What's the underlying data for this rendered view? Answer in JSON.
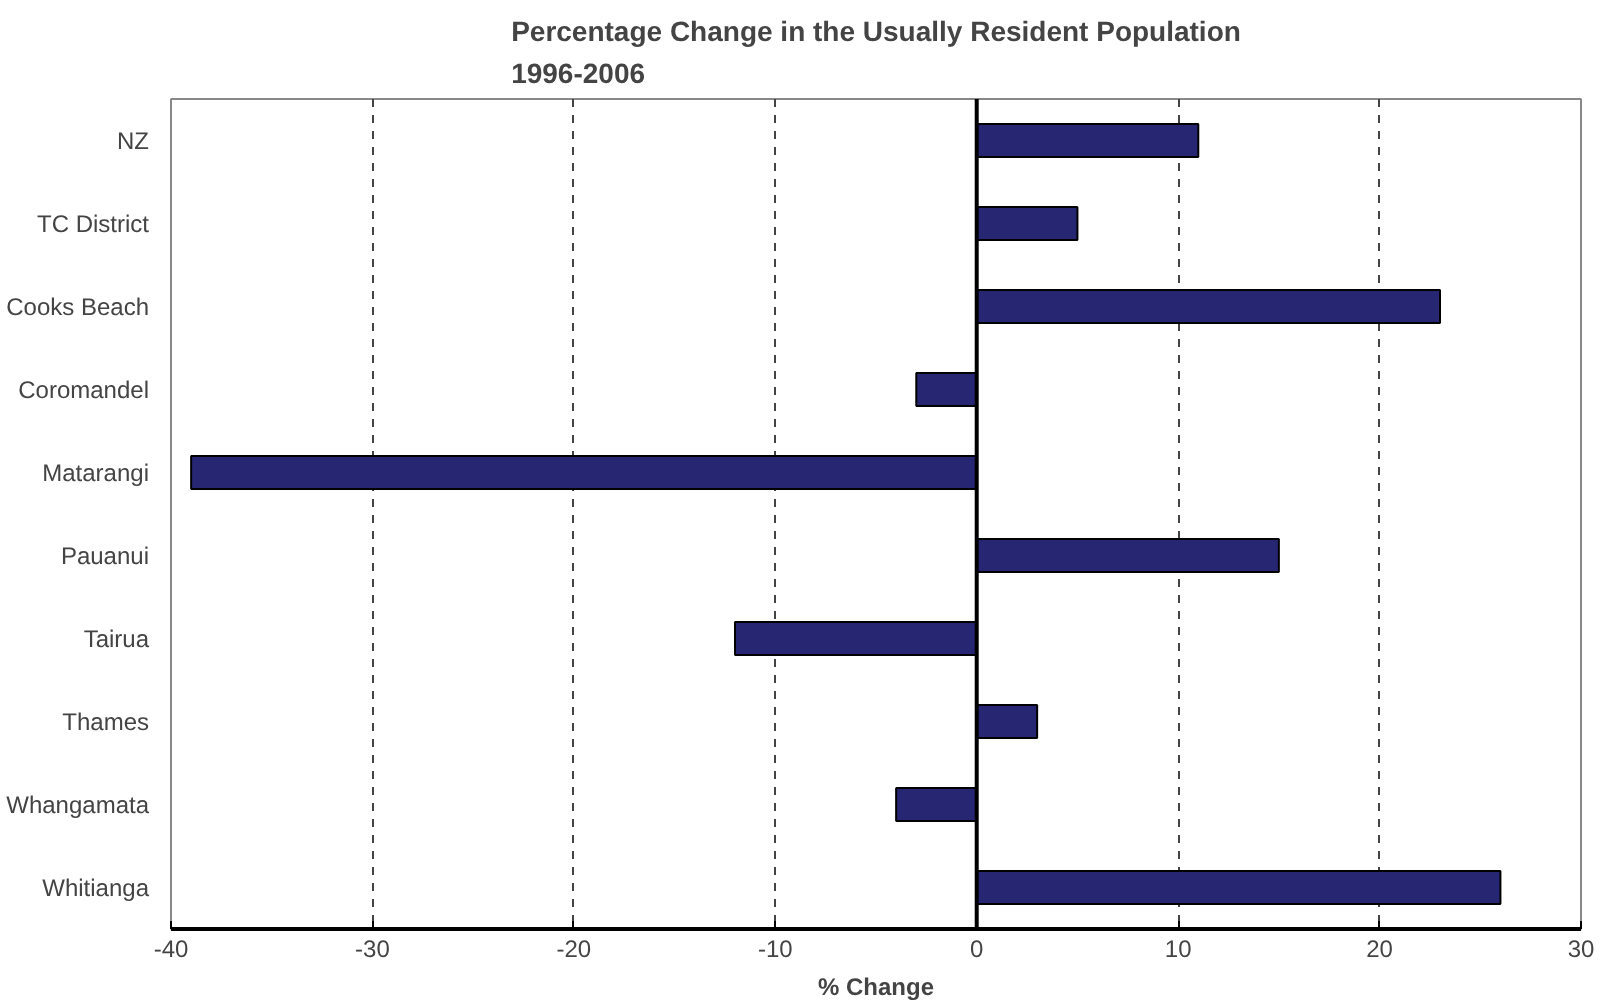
{
  "chart_data": {
    "type": "bar",
    "orientation": "horizontal",
    "title": "Percentage Change in the Usually Resident Population\n1996-2006",
    "xlabel": "% Change",
    "categories": [
      "NZ",
      "TC District",
      "Cooks Beach",
      "Coromandel",
      "Matarangi",
      "Pauanui",
      "Tairua",
      "Thames",
      "Whangamata",
      "Whitianga"
    ],
    "values": [
      11,
      5,
      23,
      -3,
      -39,
      15,
      -12,
      3,
      -4,
      26
    ],
    "color": "#262673",
    "xlim": [
      -40,
      30
    ],
    "xticks": [
      -40,
      -30,
      -20,
      -10,
      0,
      10,
      20,
      30
    ],
    "grid": "x"
  }
}
